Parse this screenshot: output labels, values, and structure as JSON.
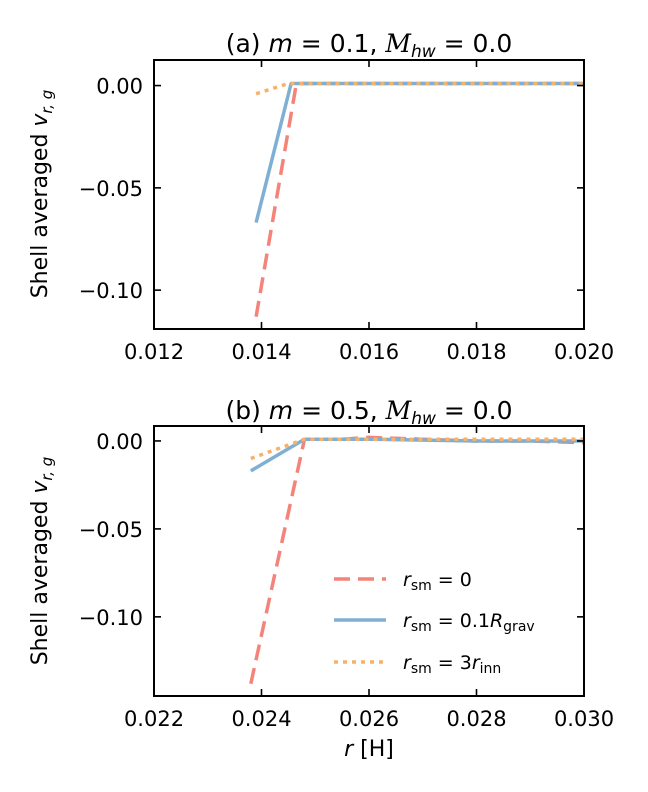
{
  "chart_data": [
    {
      "type": "line",
      "title": "(a) m = 0.1,  M_hw = 0.0",
      "title_parts": {
        "prefix": "(a) ",
        "m_sym": "m",
        "m_val": " = 0.1,  ",
        "mach_sym": "M",
        "mach_sub": "hw",
        "mach_val": " = 0.0"
      },
      "ylabel": "Shell averaged v_r,g",
      "ylabel_parts": {
        "text": "Shell averaged ",
        "sym": "v",
        "sub": "r, g"
      },
      "xlabel": "",
      "xlim": [
        0.012,
        0.02
      ],
      "ylim": [
        -0.119,
        0.0125
      ],
      "x_ticks": [
        0.012,
        0.014,
        0.016,
        0.018,
        0.02
      ],
      "x_tick_labels": [
        "0.012",
        "0.014",
        "0.016",
        "0.018",
        "0.020"
      ],
      "y_ticks": [
        0.0,
        -0.05,
        -0.1
      ],
      "y_tick_labels": [
        "0.00",
        "−0.05",
        "−0.10"
      ],
      "series": [
        {
          "name": "r_sm = 0",
          "color": "#f4837a",
          "style": "dashed",
          "x": [
            0.0139,
            0.01465,
            0.0148,
            0.016,
            0.018,
            0.02
          ],
          "y": [
            -0.113,
            0.001,
            0.001,
            0.001,
            0.001,
            0.001
          ]
        },
        {
          "name": "r_sm = 0.1R_grav",
          "color": "#7fb0d3",
          "style": "solid",
          "x": [
            0.0139,
            0.01455,
            0.0148,
            0.016,
            0.018,
            0.02
          ],
          "y": [
            -0.067,
            0.001,
            0.001,
            0.001,
            0.001,
            0.001
          ]
        },
        {
          "name": "r_sm = 3r_inn",
          "color": "#f6b26b",
          "style": "dotted",
          "x": [
            0.0139,
            0.0145,
            0.0148,
            0.016,
            0.018,
            0.02
          ],
          "y": [
            -0.004,
            0.001,
            0.001,
            0.001,
            0.001,
            0.001
          ]
        }
      ]
    },
    {
      "type": "line",
      "title": "(b) m = 0.5,  M_hw = 0.0",
      "title_parts": {
        "prefix": "(b) ",
        "m_sym": "m",
        "m_val": " = 0.5,  ",
        "mach_sym": "M",
        "mach_sub": "hw",
        "mach_val": " = 0.0"
      },
      "ylabel": "Shell averaged v_r,g",
      "ylabel_parts": {
        "text": "Shell averaged ",
        "sym": "v",
        "sub": "r, g"
      },
      "xlabel": "r [H]",
      "xlabel_parts": {
        "sym": "r",
        "unit": " [H]"
      },
      "xlim": [
        0.022,
        0.03
      ],
      "ylim": [
        -0.145,
        0.0085
      ],
      "x_ticks": [
        0.022,
        0.024,
        0.026,
        0.028,
        0.03
      ],
      "x_tick_labels": [
        "0.022",
        "0.024",
        "0.026",
        "0.028",
        "0.030"
      ],
      "y_ticks": [
        0.0,
        -0.05,
        -0.1
      ],
      "y_tick_labels": [
        "0.00",
        "−0.05",
        "−0.10"
      ],
      "series": [
        {
          "name": "r_sm = 0",
          "color": "#f4837a",
          "style": "dashed",
          "x": [
            0.0238,
            0.0248,
            0.0255,
            0.026,
            0.027,
            0.028,
            0.029,
            0.03
          ],
          "y": [
            -0.138,
            0.001,
            0.001,
            0.002,
            0.001,
            0.0,
            0.0,
            -0.001
          ]
        },
        {
          "name": "r_sm = 0.1R_grav",
          "color": "#7fb0d3",
          "style": "solid",
          "x": [
            0.0238,
            0.0248,
            0.026,
            0.028,
            0.03
          ],
          "y": [
            -0.017,
            0.001,
            0.001,
            0.0,
            0.0
          ]
        },
        {
          "name": "r_sm = 3r_inn",
          "color": "#f6b26b",
          "style": "dotted",
          "x": [
            0.0238,
            0.0248,
            0.026,
            0.028,
            0.03
          ],
          "y": [
            -0.01,
            0.001,
            0.001,
            0.001,
            0.001
          ]
        }
      ],
      "legend": {
        "placement": "lower-right",
        "entries": [
          {
            "sym": "r",
            "sub": "sm",
            "rest": " = 0",
            "rest_sym": "",
            "rest_sub": "",
            "color": "#f4837a",
            "style": "dashed"
          },
          {
            "sym": "r",
            "sub": "sm",
            "rest": " = 0.1",
            "rest_sym": "R",
            "rest_sub": "grav",
            "color": "#7fb0d3",
            "style": "solid"
          },
          {
            "sym": "r",
            "sub": "sm",
            "rest": " = 3",
            "rest_sym": "r",
            "rest_sub": "inn",
            "color": "#f6b26b",
            "style": "dotted"
          }
        ]
      }
    }
  ]
}
